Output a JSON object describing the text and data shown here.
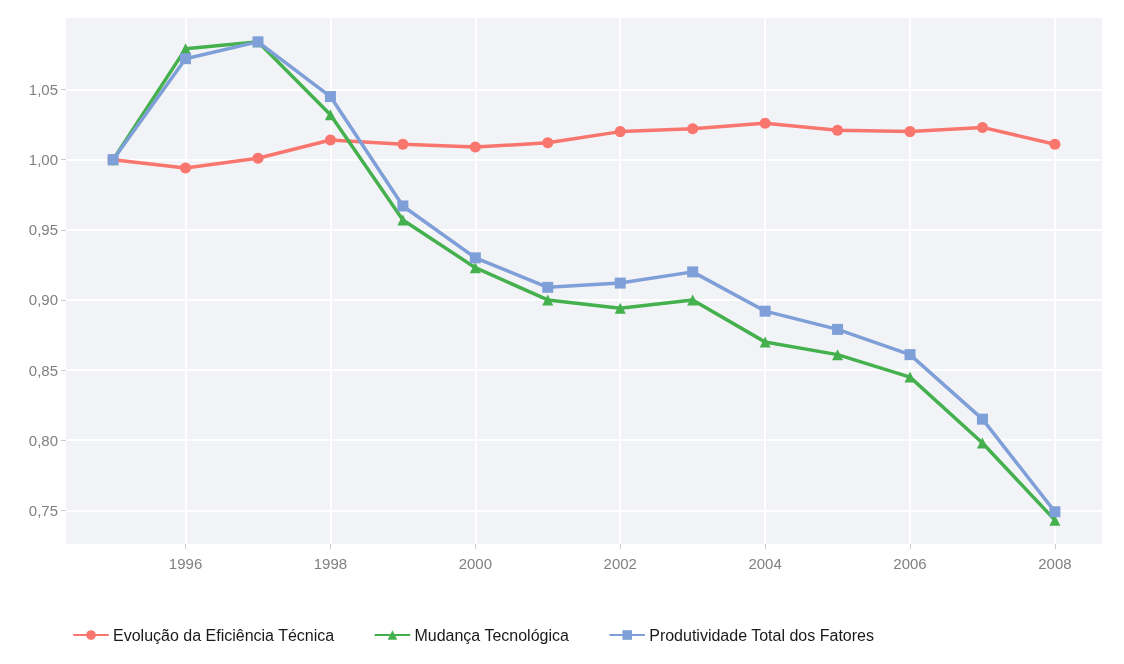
{
  "chart_data": {
    "type": "line",
    "x": [
      1995,
      1996,
      1997,
      1998,
      1999,
      2000,
      2001,
      2002,
      2003,
      2004,
      2005,
      2006,
      2007,
      2008
    ],
    "series": [
      {
        "name": "Evolução da Eficiência Técnica",
        "color": "#f8766d",
        "marker": "circle",
        "values": [
          1.0,
          0.994,
          1.001,
          1.014,
          1.011,
          1.009,
          1.012,
          1.02,
          1.022,
          1.026,
          1.021,
          1.02,
          1.023,
          1.011
        ]
      },
      {
        "name": "Mudança Tecnológica",
        "color": "#45b04e",
        "marker": "triangle",
        "values": [
          1.0,
          1.079,
          1.084,
          1.032,
          0.957,
          0.923,
          0.9,
          0.894,
          0.9,
          0.87,
          0.861,
          0.845,
          0.798,
          0.743
        ]
      },
      {
        "name": "Produtividade Total dos Fatores",
        "color": "#7f9fd8",
        "marker": "square",
        "values": [
          1.0,
          1.072,
          1.084,
          1.045,
          0.967,
          0.93,
          0.909,
          0.912,
          0.92,
          0.892,
          0.879,
          0.861,
          0.815,
          0.749
        ]
      }
    ],
    "xlim": [
      1994.35,
      2008.65
    ],
    "xticks": [
      1996,
      1998,
      2000,
      2002,
      2004,
      2006,
      2008
    ],
    "ylim": [
      0.726,
      1.101
    ],
    "yticks": [
      {
        "value": 0.75,
        "label": "0,75"
      },
      {
        "value": 0.8,
        "label": "0,80"
      },
      {
        "value": 0.85,
        "label": "0,85"
      },
      {
        "value": 0.9,
        "label": "0,90"
      },
      {
        "value": 0.95,
        "label": "0,95"
      },
      {
        "value": 1.0,
        "label": "1,00"
      },
      {
        "value": 1.05,
        "label": "1,05"
      }
    ],
    "grid": true,
    "legend": "bottom",
    "line_style": "solid"
  }
}
